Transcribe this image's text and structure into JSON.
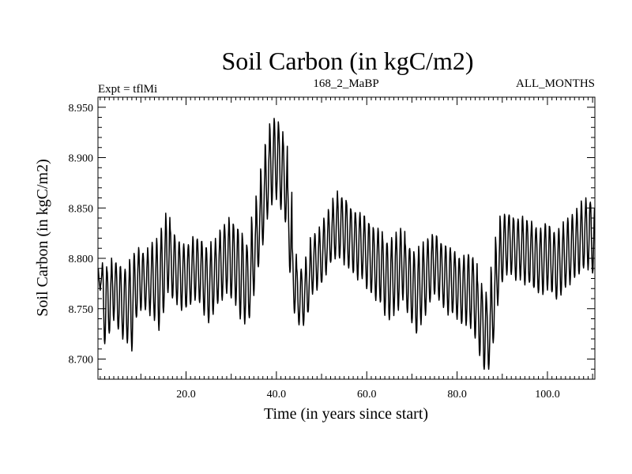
{
  "chart_data": {
    "type": "line",
    "title": "Soil Carbon (in kgC/m2)",
    "subtitle_left": "Expt = tflMi",
    "subtitle_center": "168_2_MaBP",
    "subtitle_right": "ALL_MONTHS",
    "xlabel": "Time (in years since start)",
    "ylabel": "Soil Carbon (in kgC/m2)",
    "xlim": [
      0.5,
      110.5
    ],
    "ylim": [
      8.68,
      8.96
    ],
    "x_ticks": [
      20,
      40,
      60,
      80,
      100
    ],
    "x_tick_labels": [
      "20.0",
      "40.0",
      "60.0",
      "80.0",
      "100.0"
    ],
    "y_ticks": [
      8.7,
      8.75,
      8.8,
      8.85,
      8.9,
      8.95
    ],
    "y_tick_labels": [
      "8.700",
      "8.750",
      "8.800",
      "8.850",
      "8.900",
      "8.950"
    ],
    "grid": false,
    "series": [
      {
        "name": "Soil Carbon",
        "color": "#000000",
        "sampling": "monthly (12 samples per year, seasonal cycle)",
        "yearly_high": [
          8.79,
          8.795,
          8.79,
          8.8,
          8.795,
          8.79,
          8.79,
          8.8,
          8.805,
          8.81,
          8.805,
          8.81,
          8.815,
          8.82,
          8.83,
          8.845,
          8.83,
          8.82,
          8.815,
          8.815,
          8.815,
          8.82,
          8.82,
          8.815,
          8.81,
          8.815,
          8.82,
          8.83,
          8.835,
          8.84,
          8.835,
          8.83,
          8.82,
          8.81,
          8.84,
          8.86,
          8.89,
          8.915,
          8.935,
          8.94,
          8.93,
          8.915,
          8.87,
          8.81,
          8.79,
          8.79,
          8.8,
          8.82,
          8.825,
          8.83,
          8.84,
          8.85,
          8.86,
          8.865,
          8.86,
          8.855,
          8.85,
          8.845,
          8.845,
          8.84,
          8.835,
          8.83,
          8.83,
          8.82,
          8.815,
          8.82,
          8.825,
          8.83,
          8.815,
          8.81,
          8.805,
          8.81,
          8.815,
          8.82,
          8.825,
          8.82,
          8.815,
          8.81,
          8.81,
          8.805,
          8.8,
          8.805,
          8.805,
          8.8,
          8.78,
          8.77,
          8.76,
          8.79,
          8.82,
          8.84,
          8.845,
          8.845,
          8.84,
          8.84,
          8.84,
          8.835,
          8.835,
          8.83,
          8.83,
          8.835,
          8.83,
          8.825,
          8.83,
          8.835,
          8.84,
          8.845,
          8.85,
          8.855,
          8.86,
          8.855
        ],
        "yearly_low": [
          8.77,
          8.715,
          8.725,
          8.74,
          8.73,
          8.72,
          8.715,
          8.71,
          8.74,
          8.75,
          8.75,
          8.745,
          8.74,
          8.73,
          8.745,
          8.765,
          8.76,
          8.755,
          8.75,
          8.75,
          8.755,
          8.76,
          8.755,
          8.745,
          8.735,
          8.745,
          8.755,
          8.76,
          8.765,
          8.76,
          8.755,
          8.74,
          8.735,
          8.74,
          8.765,
          8.79,
          8.815,
          8.84,
          8.855,
          8.86,
          8.85,
          8.835,
          8.785,
          8.745,
          8.735,
          8.735,
          8.745,
          8.765,
          8.77,
          8.775,
          8.785,
          8.795,
          8.8,
          8.8,
          8.795,
          8.79,
          8.785,
          8.78,
          8.78,
          8.77,
          8.765,
          8.76,
          8.755,
          8.745,
          8.74,
          8.745,
          8.75,
          8.76,
          8.745,
          8.735,
          8.725,
          8.735,
          8.745,
          8.755,
          8.765,
          8.76,
          8.75,
          8.745,
          8.745,
          8.74,
          8.735,
          8.735,
          8.73,
          8.72,
          8.705,
          8.69,
          8.69,
          8.715,
          8.755,
          8.775,
          8.785,
          8.785,
          8.78,
          8.78,
          8.775,
          8.775,
          8.77,
          8.765,
          8.765,
          8.77,
          8.765,
          8.76,
          8.765,
          8.77,
          8.775,
          8.78,
          8.785,
          8.79,
          8.79,
          8.785
        ]
      }
    ]
  }
}
